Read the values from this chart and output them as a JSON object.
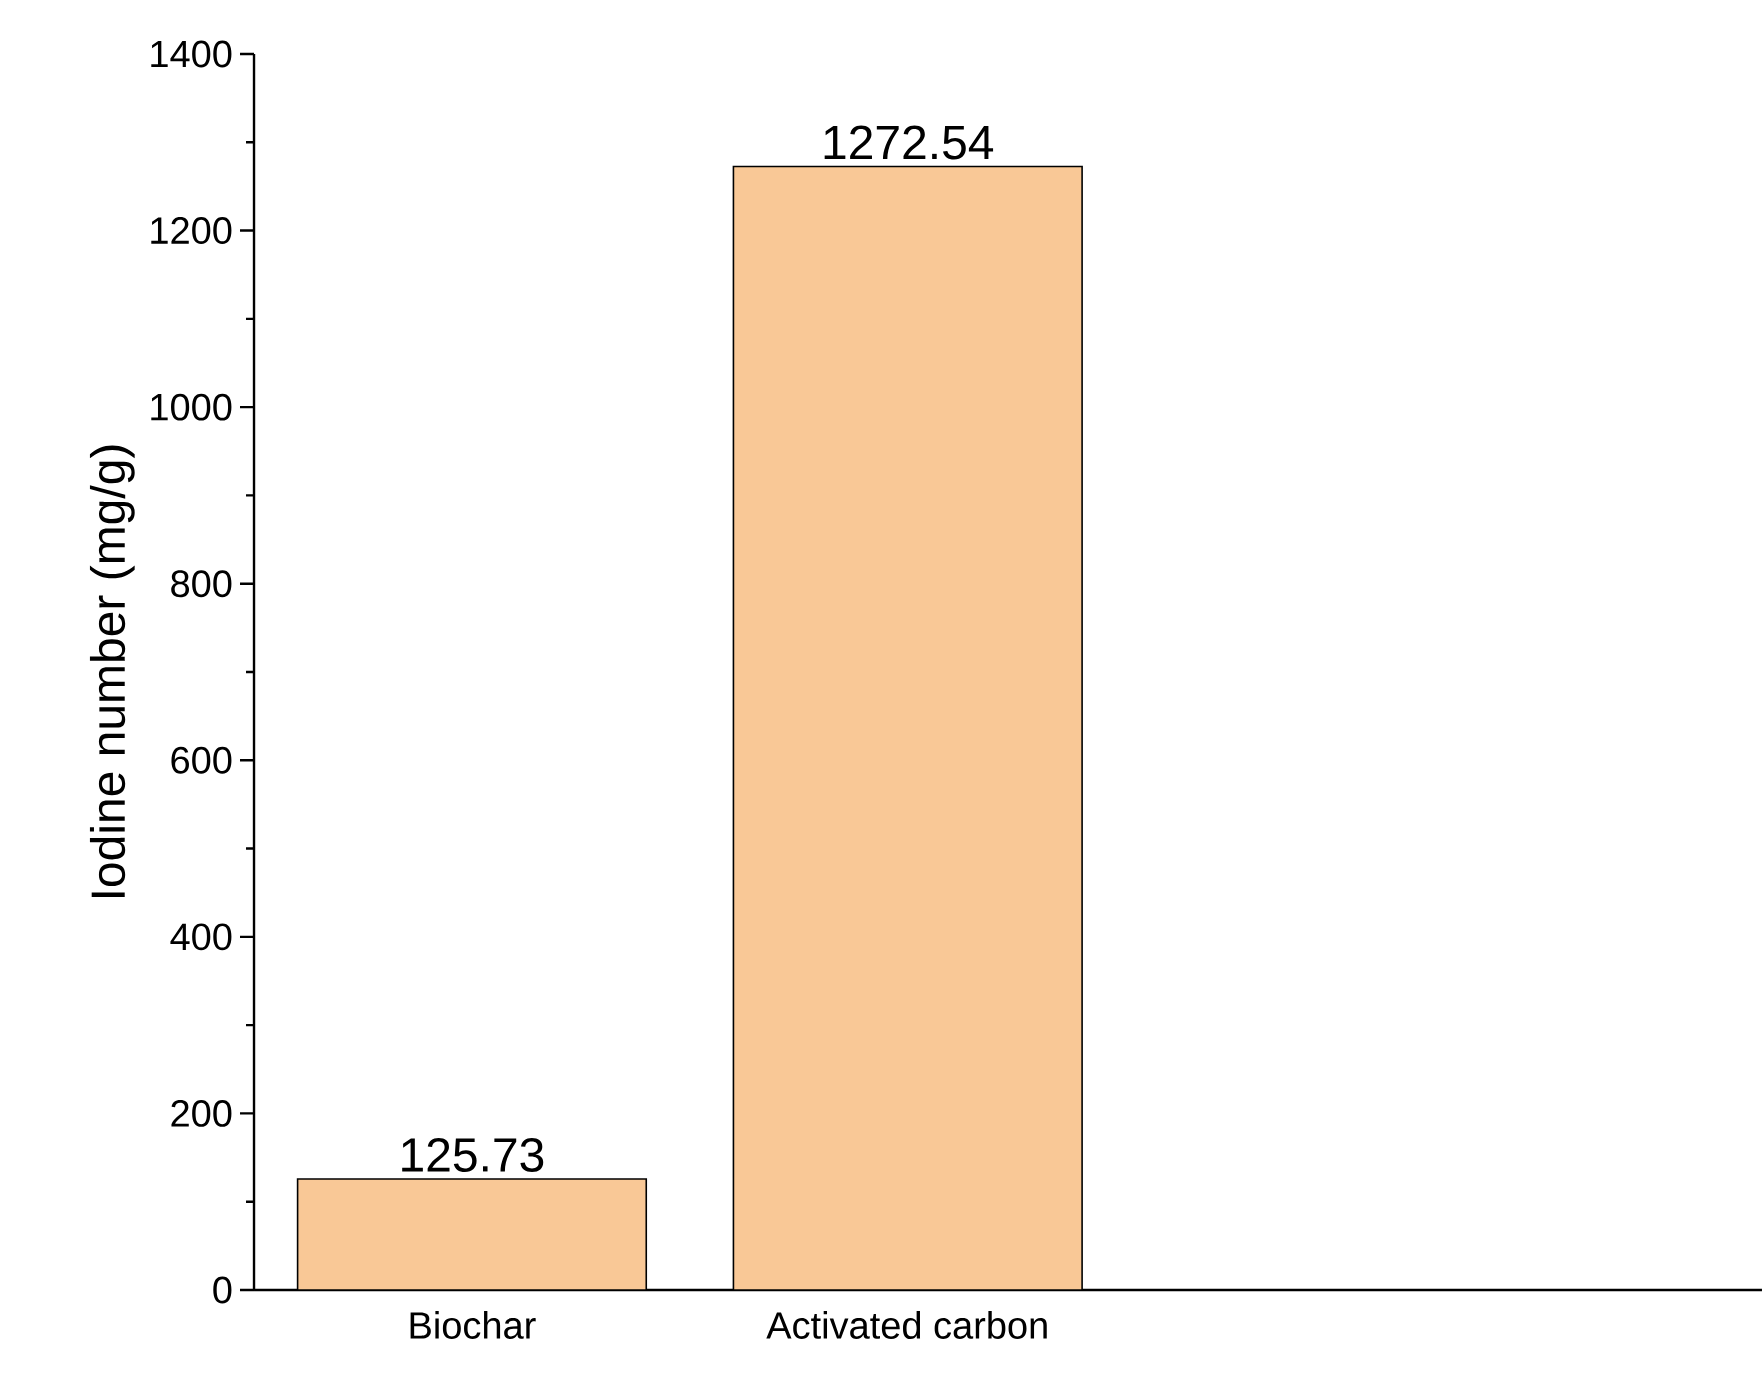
{
  "chart_data": {
    "type": "bar",
    "ylabel": "Iodine number (mg/g)",
    "categories": [
      "Biochar",
      "Activated carbon"
    ],
    "values": [
      125.73,
      1272.54
    ],
    "value_labels": [
      "125.73",
      "1272.54"
    ],
    "color": "#f9c896",
    "ylim": [
      0,
      1400
    ],
    "yticks": [
      0,
      200,
      400,
      600,
      800,
      1000,
      1200,
      1400
    ],
    "grid": false
  }
}
